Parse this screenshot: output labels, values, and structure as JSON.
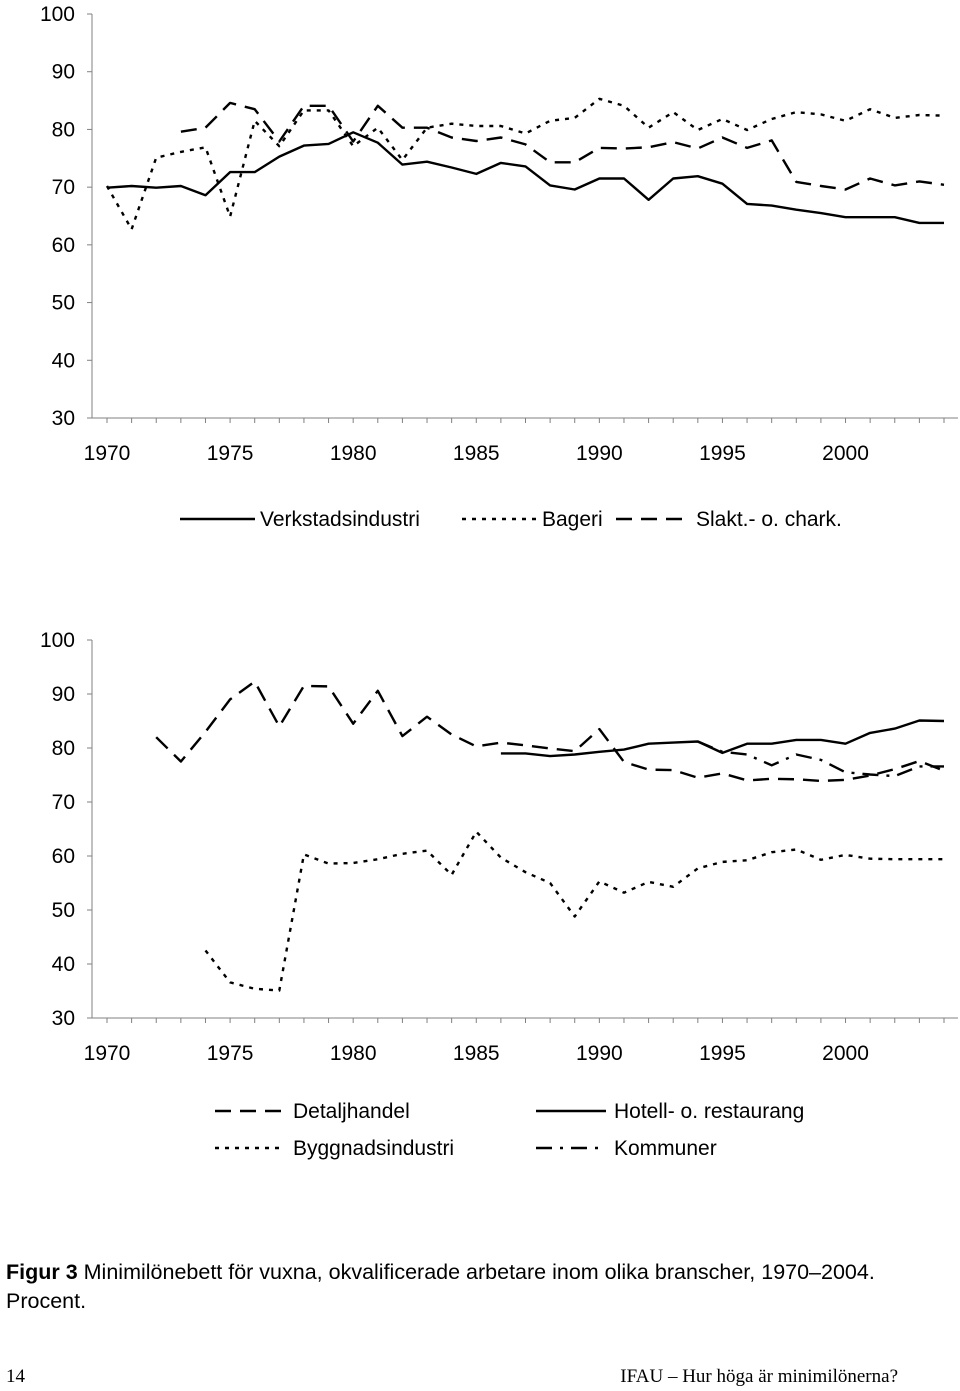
{
  "charts": [
    {
      "type": "line",
      "ylim": [
        30,
        100
      ],
      "yticks": [
        30,
        40,
        50,
        60,
        70,
        80,
        90,
        100
      ],
      "xticks": [
        1970,
        1975,
        1980,
        1985,
        1990,
        1995,
        2000
      ],
      "xlim": [
        1970,
        2004
      ],
      "legend_position": "bottom",
      "series": [
        {
          "name": "Verkstadsindustri",
          "dash": "solid",
          "x": [
            1970,
            1971,
            1972,
            1973,
            1974,
            1975,
            1976,
            1977,
            1978,
            1979,
            1980,
            1981,
            1982,
            1983,
            1984,
            1985,
            1986,
            1987,
            1988,
            1989,
            1990,
            1991,
            1992,
            1993,
            1994,
            1995,
            1996,
            1997,
            1998,
            1999,
            2000,
            2001,
            2002,
            2003,
            2004
          ],
          "y": [
            69.9,
            70.2,
            69.9,
            70.2,
            68.6,
            72.6,
            72.6,
            75.3,
            77.2,
            77.5,
            79.5,
            77.7,
            73.9,
            74.4,
            73.4,
            72.3,
            74.2,
            73.6,
            70.3,
            69.6,
            71.5,
            71.5,
            67.8,
            71.5,
            71.9,
            70.6,
            67.1,
            66.8,
            66.1,
            65.5,
            64.8,
            64.8,
            64.8,
            63.8,
            63.8
          ]
        },
        {
          "name": "Bageri",
          "dash": "dotted",
          "x": [
            1970,
            1971,
            1972,
            1973,
            1974,
            1975,
            1976,
            1977,
            1978,
            1979,
            1980,
            1981,
            1982,
            1983,
            1984,
            1985,
            1986,
            1987,
            1988,
            1989,
            1990,
            1991,
            1992,
            1993,
            1994,
            1995,
            1996,
            1997,
            1998,
            1999,
            2000,
            2001,
            2002,
            2003,
            2004
          ],
          "y": [
            70.2,
            62.7,
            75.1,
            76.1,
            76.9,
            64.9,
            81.5,
            77.1,
            83.3,
            83.3,
            77.1,
            80.3,
            74.7,
            80.3,
            81.0,
            80.6,
            80.6,
            79.3,
            81.5,
            82.0,
            85.3,
            84.1,
            80.3,
            83.0,
            79.9,
            81.8,
            79.9,
            81.8,
            83.0,
            82.6,
            81.5,
            83.5,
            82.0,
            82.5,
            82.4
          ]
        },
        {
          "name": "Slakt.- o. chark.",
          "dash": "dashed",
          "x": [
            1973,
            1974,
            1975,
            1976,
            1977,
            1978,
            1979,
            1980,
            1981,
            1982,
            1983,
            1984,
            1985,
            1986,
            1987,
            1988,
            1989,
            1990,
            1991,
            1992,
            1993,
            1994,
            1995,
            1996,
            1997,
            1998,
            1999,
            2000,
            2001,
            2002,
            2003,
            2004
          ],
          "y": [
            79.6,
            80.3,
            84.6,
            83.5,
            77.9,
            84.1,
            84.1,
            77.9,
            84.1,
            80.3,
            80.3,
            78.6,
            78.0,
            78.6,
            77.4,
            74.3,
            74.3,
            76.8,
            76.7,
            76.9,
            77.8,
            76.7,
            78.6,
            76.8,
            78.1,
            70.9,
            70.2,
            69.6,
            71.5,
            70.3,
            71.0,
            70.4
          ]
        }
      ]
    },
    {
      "type": "line",
      "ylim": [
        30,
        100
      ],
      "yticks": [
        30,
        40,
        50,
        60,
        70,
        80,
        90,
        100
      ],
      "xticks": [
        1970,
        1975,
        1980,
        1985,
        1990,
        1995,
        2000
      ],
      "xlim": [
        1970,
        2004
      ],
      "legend_position": "bottom",
      "series": [
        {
          "name": "Detaljhandel",
          "dash": "dashed",
          "x": [
            1972,
            1973,
            1974,
            1975,
            1976,
            1977,
            1978,
            1979,
            1980,
            1981,
            1982,
            1983,
            1984,
            1985,
            1986,
            1987,
            1988,
            1989,
            1990,
            1991,
            1992,
            1993,
            1994,
            1995,
            1996,
            1997,
            1998,
            1999,
            2000,
            2001,
            2002,
            2003,
            2004
          ],
          "y": [
            82,
            77.5,
            83,
            89,
            92.3,
            84,
            91.5,
            91.4,
            84.5,
            90.6,
            82.2,
            85.8,
            82.5,
            80.3,
            81,
            80.5,
            79.9,
            79.4,
            83.5,
            77.4,
            76,
            75.9,
            74.5,
            75.3,
            74,
            74.3,
            74.2,
            73.9,
            74.1,
            74.9,
            76.1,
            77.6,
            75.8
          ]
        },
        {
          "name": "Byggnadsindustri",
          "dash": "dotted",
          "x": [
            1974,
            1975,
            1976,
            1977,
            1978,
            1979,
            1980,
            1981,
            1982,
            1983,
            1984,
            1985,
            1986,
            1987,
            1988,
            1989,
            1990,
            1991,
            1992,
            1993,
            1994,
            1995,
            1996,
            1997,
            1998,
            1999,
            2000,
            2001,
            2002,
            2003,
            2004
          ],
          "y": [
            42.5,
            36.6,
            35.4,
            35.1,
            60.3,
            58.6,
            58.7,
            59.4,
            60.4,
            61,
            56.5,
            64.5,
            59.7,
            57,
            55,
            48.8,
            55.3,
            53.2,
            55.2,
            54.3,
            57.7,
            58.9,
            59.2,
            60.7,
            61.2,
            59.3,
            60.2,
            59.5,
            59.4,
            59.4,
            59.4
          ]
        },
        {
          "name": "Hotell- o. restaurang",
          "dash": "solid",
          "x": [
            1986,
            1987,
            1988,
            1989,
            1990,
            1991,
            1992,
            1993,
            1994,
            1995,
            1996,
            1997,
            1998,
            1999,
            2000,
            2001,
            2002,
            2003,
            2004
          ],
          "y": [
            79,
            79,
            78.5,
            78.8,
            79.3,
            79.7,
            80.8,
            81,
            81.2,
            79.1,
            80.8,
            80.8,
            81.5,
            81.5,
            80.8,
            82.8,
            83.6,
            85.1,
            85
          ]
        },
        {
          "name": "Kommuner",
          "dash": "dashdot",
          "x": [
            1994,
            1995,
            1996,
            1997,
            1998,
            1999,
            2000,
            2001,
            2002,
            2003,
            2004
          ],
          "y": [
            81.2,
            79.3,
            78.8,
            76.8,
            78.8,
            77.8,
            75.5,
            75.1,
            74.8,
            76.6,
            76.6
          ]
        }
      ]
    }
  ],
  "chart_data": [
    {
      "type": "line",
      "ylim": [
        30,
        100
      ],
      "categories": [
        1970,
        1975,
        1980,
        1985,
        1990,
        1995,
        2000
      ],
      "series": [
        {
          "name": "Verkstadsindustri"
        },
        {
          "name": "Bageri"
        },
        {
          "name": "Slakt.- o. chark."
        }
      ]
    },
    {
      "type": "line",
      "ylim": [
        30,
        100
      ],
      "categories": [
        1970,
        1975,
        1980,
        1985,
        1990,
        1995,
        2000
      ],
      "series": [
        {
          "name": "Detaljhandel"
        },
        {
          "name": "Byggnadsindustri"
        },
        {
          "name": "Hotell- o. restaurang"
        },
        {
          "name": "Kommuner"
        }
      ]
    }
  ],
  "caption": {
    "label": "Figur 3",
    "text": " Minimilönebett för vuxna, okvalificerade arbetare inom olika branscher, 1970–2004. Procent."
  },
  "footer": {
    "page_number": "14",
    "title": "IFAU – Hur höga är minimilönerna?"
  }
}
